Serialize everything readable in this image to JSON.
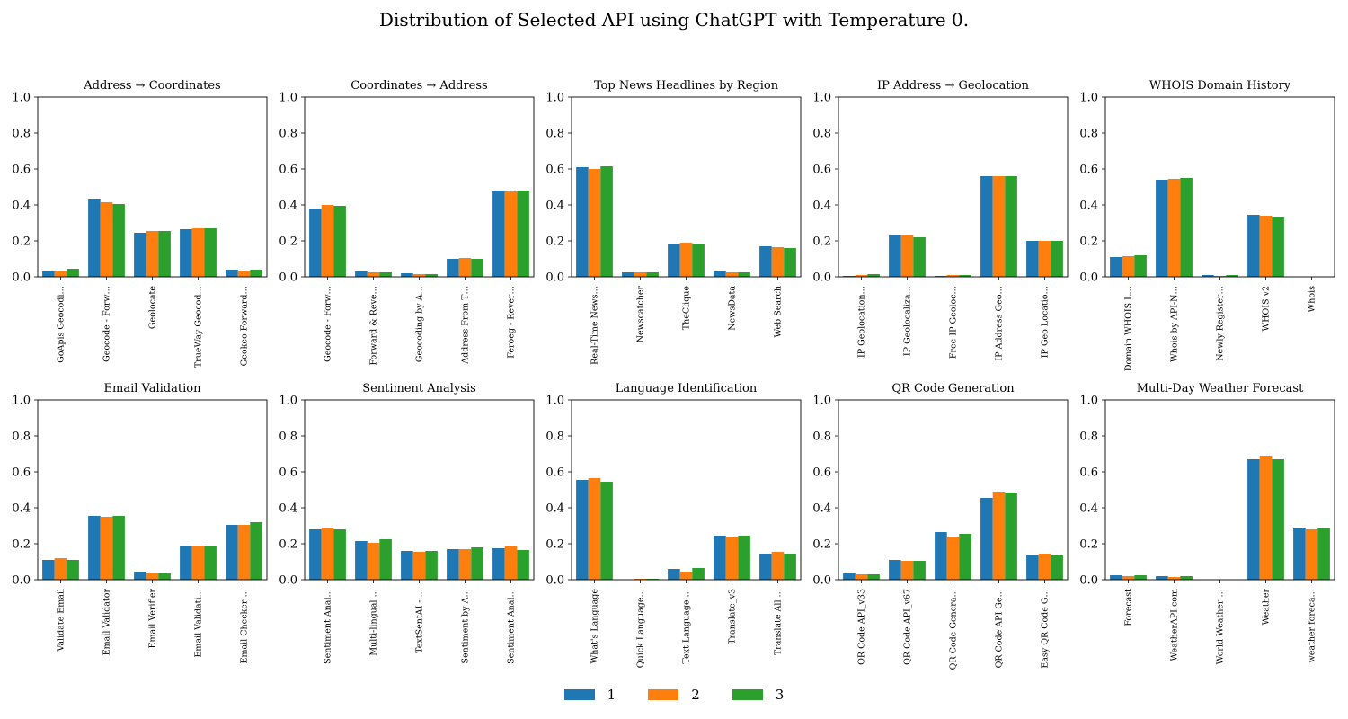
{
  "suptitle": "Distribution of Selected API using ChatGPT with Temperature 0.",
  "colors": [
    "#1f77b4",
    "#ff7f0e",
    "#2ca02c"
  ],
  "legend": [
    "1",
    "2",
    "3"
  ],
  "chart_data": [
    {
      "type": "bar",
      "title": "Address → Coordinates",
      "ylim": [
        0,
        1
      ],
      "yticks": [
        "0.0",
        "0.2",
        "0.4",
        "0.6",
        "0.8",
        "1.0"
      ],
      "categories": [
        "GoApis Geocodi…",
        "Geocode - Forw…",
        "Geolocate",
        "TrueWay Geocod…",
        "Geokeo Forward…"
      ],
      "series": [
        {
          "name": "1",
          "values": [
            0.03,
            0.435,
            0.245,
            0.265,
            0.04
          ]
        },
        {
          "name": "2",
          "values": [
            0.035,
            0.415,
            0.255,
            0.27,
            0.035
          ]
        },
        {
          "name": "3",
          "values": [
            0.045,
            0.405,
            0.255,
            0.27,
            0.04
          ]
        }
      ]
    },
    {
      "type": "bar",
      "title": "Coordinates → Address",
      "ylim": [
        0,
        1
      ],
      "yticks": [
        "0.0",
        "0.2",
        "0.4",
        "0.6",
        "0.8",
        "1.0"
      ],
      "categories": [
        "Geocode - Forw…",
        "Forward & Reve…",
        "Geocoding by A…",
        "Address From T…",
        "Feroeg - Rever…"
      ],
      "series": [
        {
          "name": "1",
          "values": [
            0.38,
            0.03,
            0.02,
            0.1,
            0.48
          ]
        },
        {
          "name": "2",
          "values": [
            0.4,
            0.025,
            0.015,
            0.105,
            0.475
          ]
        },
        {
          "name": "3",
          "values": [
            0.395,
            0.025,
            0.015,
            0.1,
            0.48
          ]
        }
      ]
    },
    {
      "type": "bar",
      "title": "Top News Headlines by Region",
      "ylim": [
        0,
        1
      ],
      "yticks": [
        "0.0",
        "0.2",
        "0.4",
        "0.6",
        "0.8",
        "1.0"
      ],
      "categories": [
        "Real-Time News…",
        "Newscatcher",
        "TheClique",
        "NewsData",
        "Web Search"
      ],
      "series": [
        {
          "name": "1",
          "values": [
            0.61,
            0.025,
            0.18,
            0.03,
            0.17
          ]
        },
        {
          "name": "2",
          "values": [
            0.6,
            0.025,
            0.19,
            0.025,
            0.165
          ]
        },
        {
          "name": "3",
          "values": [
            0.615,
            0.025,
            0.185,
            0.025,
            0.16
          ]
        }
      ]
    },
    {
      "type": "bar",
      "title": "IP Address → Geolocation",
      "ylim": [
        0,
        1
      ],
      "yticks": [
        "0.0",
        "0.2",
        "0.4",
        "0.6",
        "0.8",
        "1.0"
      ],
      "categories": [
        "IP Geolocation…",
        "IP Geolocaliza…",
        "Free IP Geoloc…",
        "IP Address Geo…",
        "IP Geo Locatio…"
      ],
      "series": [
        {
          "name": "1",
          "values": [
            0.005,
            0.235,
            0.005,
            0.56,
            0.2
          ]
        },
        {
          "name": "2",
          "values": [
            0.01,
            0.235,
            0.01,
            0.56,
            0.2
          ]
        },
        {
          "name": "3",
          "values": [
            0.015,
            0.22,
            0.01,
            0.56,
            0.2
          ]
        }
      ]
    },
    {
      "type": "bar",
      "title": "WHOIS Domain History",
      "ylim": [
        0,
        1
      ],
      "yticks": [
        "0.0",
        "0.2",
        "0.4",
        "0.6",
        "0.8",
        "1.0"
      ],
      "categories": [
        "Domain WHOIS L…",
        "Whois by API-N…",
        "Newly Register…",
        "WHOIS v2",
        "Whois"
      ],
      "series": [
        {
          "name": "1",
          "values": [
            0.11,
            0.54,
            0.01,
            0.345,
            0
          ]
        },
        {
          "name": "2",
          "values": [
            0.115,
            0.545,
            0.005,
            0.34,
            0
          ]
        },
        {
          "name": "3",
          "values": [
            0.12,
            0.55,
            0.01,
            0.33,
            0
          ]
        }
      ]
    },
    {
      "type": "bar",
      "title": "Email Validation",
      "ylim": [
        0,
        1
      ],
      "yticks": [
        "0.0",
        "0.2",
        "0.4",
        "0.6",
        "0.8",
        "1.0"
      ],
      "categories": [
        "Validate Email",
        "Email Validator",
        "Email Verifier",
        "Email Validati…",
        "Email Checker …"
      ],
      "series": [
        {
          "name": "1",
          "values": [
            0.11,
            0.355,
            0.045,
            0.19,
            0.305
          ]
        },
        {
          "name": "2",
          "values": [
            0.12,
            0.35,
            0.04,
            0.19,
            0.305
          ]
        },
        {
          "name": "3",
          "values": [
            0.11,
            0.355,
            0.04,
            0.185,
            0.32
          ]
        }
      ]
    },
    {
      "type": "bar",
      "title": "Sentiment Analysis",
      "ylim": [
        0,
        1
      ],
      "yticks": [
        "0.0",
        "0.2",
        "0.4",
        "0.6",
        "0.8",
        "1.0"
      ],
      "categories": [
        "Sentiment Anal…",
        "Multi-lingual …",
        "TextSentAI - …",
        "Sentiment by A…",
        "Sentiment Anal…"
      ],
      "series": [
        {
          "name": "1",
          "values": [
            0.28,
            0.215,
            0.16,
            0.17,
            0.175
          ]
        },
        {
          "name": "2",
          "values": [
            0.29,
            0.205,
            0.155,
            0.17,
            0.185
          ]
        },
        {
          "name": "3",
          "values": [
            0.28,
            0.225,
            0.16,
            0.18,
            0.165
          ]
        }
      ]
    },
    {
      "type": "bar",
      "title": "Language Identification",
      "ylim": [
        0,
        1
      ],
      "yticks": [
        "0.0",
        "0.2",
        "0.4",
        "0.6",
        "0.8",
        "1.0"
      ],
      "categories": [
        "What's Language",
        "Quick Language…",
        "Text Language …",
        "Translate_v3",
        "Translate All …"
      ],
      "series": [
        {
          "name": "1",
          "values": [
            0.555,
            0,
            0.06,
            0.245,
            0.145
          ]
        },
        {
          "name": "2",
          "values": [
            0.565,
            0.005,
            0.045,
            0.24,
            0.155
          ]
        },
        {
          "name": "3",
          "values": [
            0.545,
            0.005,
            0.065,
            0.245,
            0.145
          ]
        }
      ]
    },
    {
      "type": "bar",
      "title": "QR Code Generation",
      "ylim": [
        0,
        1
      ],
      "yticks": [
        "0.0",
        "0.2",
        "0.4",
        "0.6",
        "0.8",
        "1.0"
      ],
      "categories": [
        "QR Code API_v33",
        "QR Code API_v67",
        "QR Code Genera…",
        "QR Code API Ge…",
        "Easy QR Code G…"
      ],
      "series": [
        {
          "name": "1",
          "values": [
            0.035,
            0.11,
            0.265,
            0.455,
            0.14
          ]
        },
        {
          "name": "2",
          "values": [
            0.03,
            0.105,
            0.235,
            0.49,
            0.145
          ]
        },
        {
          "name": "3",
          "values": [
            0.03,
            0.105,
            0.255,
            0.485,
            0.135
          ]
        }
      ]
    },
    {
      "type": "bar",
      "title": "Multi-Day Weather Forecast",
      "ylim": [
        0,
        1
      ],
      "yticks": [
        "0.0",
        "0.2",
        "0.4",
        "0.6",
        "0.8",
        "1.0"
      ],
      "categories": [
        "Forecast",
        "WeatherAPI.com",
        "World Weather …",
        "Weather",
        "weather foreca…"
      ],
      "series": [
        {
          "name": "1",
          "values": [
            0.025,
            0.02,
            0,
            0.67,
            0.285
          ]
        },
        {
          "name": "2",
          "values": [
            0.02,
            0.015,
            0,
            0.69,
            0.28
          ]
        },
        {
          "name": "3",
          "values": [
            0.025,
            0.02,
            0,
            0.67,
            0.29
          ]
        }
      ]
    }
  ]
}
